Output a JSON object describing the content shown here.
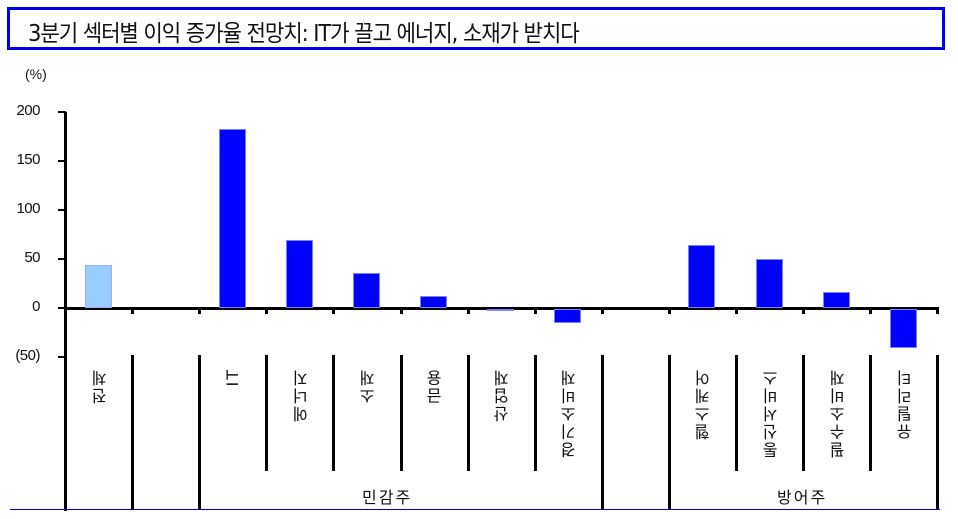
{
  "title": "3분기 섹터별 이익 증가율 전망치: IT가 끌고 에너지, 소재가 받치다",
  "colors": {
    "title_border": "#0000ee",
    "bar_primary": "#0000ff",
    "bar_total": "#99ccff",
    "bottom_rule": "#0000cc"
  },
  "axis": {
    "unit_label": "(%)",
    "ticks": [
      "200",
      "150",
      "100",
      "50",
      "0",
      "(50)"
    ]
  },
  "groups": {
    "cyclical": "민감주",
    "defensive": "방어주"
  },
  "chart_data": {
    "type": "bar",
    "title": "3분기 섹터별 이익 증가율 전망치: IT가 끌고 에너지, 소재가 받치다",
    "xlabel": "",
    "ylabel": "(%)",
    "ylim": [
      -50,
      200
    ],
    "yticks": [
      200,
      150,
      100,
      50,
      0,
      -50
    ],
    "ytick_labels": [
      "200",
      "150",
      "100",
      "50",
      "0",
      "(50)"
    ],
    "grid": false,
    "legend": null,
    "categories": [
      "전체",
      "IT",
      "에너지",
      "소재",
      "금융",
      "산업재",
      "경기소비재",
      "헬스케어",
      "통신서비스",
      "필수소비재",
      "유틸리티"
    ],
    "values": [
      44,
      183,
      69,
      36,
      12,
      -1,
      -14,
      64,
      50,
      16,
      -40
    ],
    "category_groups": [
      {
        "name": "",
        "members": [
          "전체"
        ]
      },
      {
        "name": "민감주",
        "members": [
          "IT",
          "에너지",
          "소재",
          "금융",
          "산업재",
          "경기소비재"
        ]
      },
      {
        "name": "방어주",
        "members": [
          "헬스케어",
          "통신서비스",
          "필수소비재",
          "유틸리티"
        ]
      }
    ],
    "bar_colors": [
      "#99ccff",
      "#0000ff",
      "#0000ff",
      "#0000ff",
      "#0000ff",
      "#0000ff",
      "#0000ff",
      "#0000ff",
      "#0000ff",
      "#0000ff",
      "#0000ff"
    ]
  }
}
